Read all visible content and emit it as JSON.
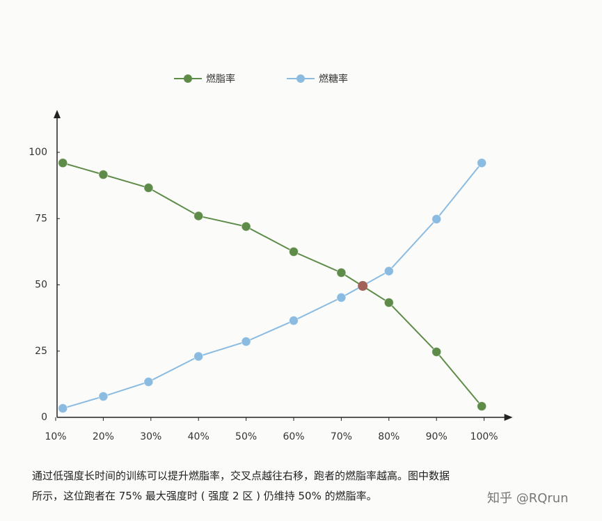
{
  "chart_data": {
    "type": "line",
    "x": [
      11.5,
      20,
      29.5,
      40,
      50,
      60,
      70,
      80,
      90,
      99.5
    ],
    "series": [
      {
        "name": "燃脂率",
        "color": "#5e8c48",
        "values": [
          96,
          91.6,
          86.6,
          76,
          72,
          62.5,
          54.6,
          43.3,
          24.7,
          4.2
        ]
      },
      {
        "name": "燃糖率",
        "color": "#8bbbe0",
        "values": [
          3.4,
          7.9,
          13.4,
          23,
          28.6,
          36.5,
          45.2,
          55.2,
          74.8,
          96
        ]
      }
    ],
    "intersection": {
      "x": 74.5,
      "y": 49.6,
      "color": "#a2625a"
    },
    "xlim": [
      10,
      106
    ],
    "ylim": [
      0,
      116
    ],
    "xticks": [
      {
        "value": 10,
        "label": "10%"
      },
      {
        "value": 20,
        "label": "20%"
      },
      {
        "value": 30,
        "label": "30%"
      },
      {
        "value": 40,
        "label": "40%"
      },
      {
        "value": 50,
        "label": "50%"
      },
      {
        "value": 60,
        "label": "60%"
      },
      {
        "value": 70,
        "label": "70%"
      },
      {
        "value": 80,
        "label": "80%"
      },
      {
        "value": 90,
        "label": "90%"
      },
      {
        "value": 100,
        "label": "100%"
      }
    ],
    "yticks": [
      0,
      25,
      50,
      75,
      100
    ]
  },
  "caption": [
    "通过低强度长时间的训练可以提升燃脂率，交叉点越往右移，跑者的燃脂率越高。图中数据",
    "所示，这位跑者在 75% 最大强度时 ( 强度 2 区 ) 仍维持 50% 的燃脂率。"
  ],
  "watermark": "知乎 @RQrun"
}
